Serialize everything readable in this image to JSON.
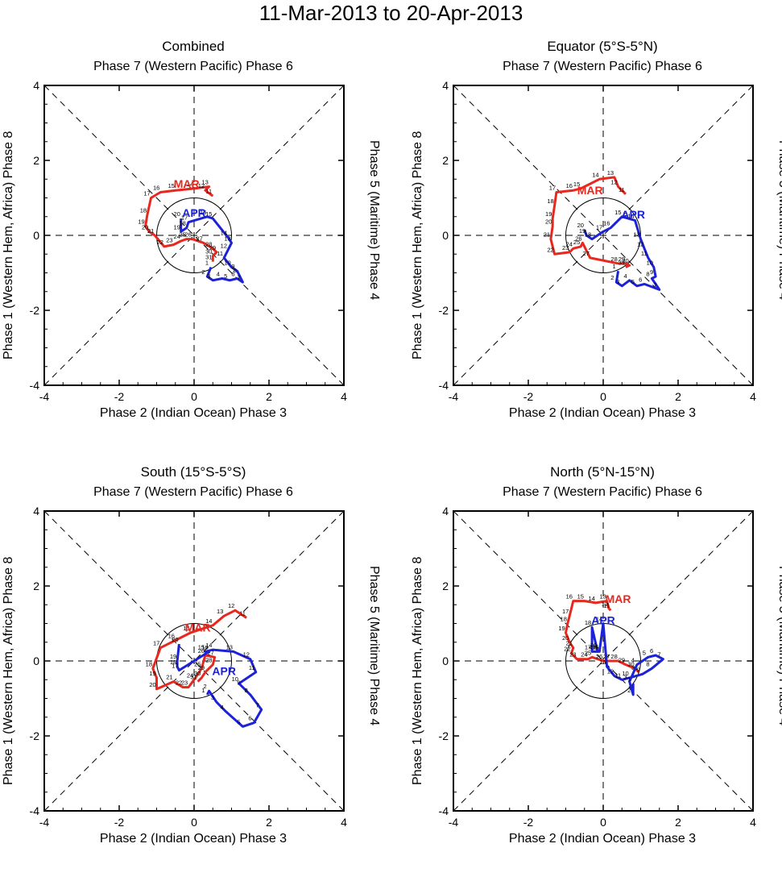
{
  "title": "11-Mar-2013 to 20-Apr-2013",
  "axis_labels": {
    "top": "Phase 7 (Western Pacific) Phase 6",
    "bottom": "Phase 2 (Indian Ocean) Phase 3",
    "left": "Phase 1 (Western Hem, Africa) Phase 8",
    "right": "Phase 5 (Maritime) Phase 4"
  },
  "colors": {
    "mar": "#e8281e",
    "apr": "#1c22d6"
  },
  "chart_data": [
    {
      "type": "line",
      "title": "Combined",
      "xlim": [
        -4,
        4
      ],
      "ylim": [
        -4,
        4
      ],
      "ticks": [
        "-4",
        "-2",
        "0",
        "2",
        "4"
      ],
      "series": [
        {
          "name": "MAR",
          "label": "MAR",
          "label_at": [
            -0.2,
            1.27
          ],
          "days": [
            11,
            12,
            13,
            14,
            15,
            16,
            17,
            18,
            19,
            20,
            21,
            22,
            23,
            24,
            25,
            26,
            27,
            28,
            29,
            30,
            31
          ],
          "x": [
            0.5,
            0.3,
            0.4,
            0.0,
            -0.5,
            -0.9,
            -1.15,
            -1.25,
            -1.3,
            -1.2,
            -1.05,
            -0.8,
            -0.55,
            -0.35,
            -0.2,
            -0.05,
            0.25,
            0.5,
            0.6,
            0.5,
            0.5
          ],
          "y": [
            1.05,
            1.2,
            1.3,
            1.25,
            1.2,
            1.15,
            1.0,
            0.55,
            0.25,
            0.1,
            0.0,
            -0.3,
            -0.25,
            -0.15,
            -0.1,
            -0.1,
            -0.2,
            -0.35,
            -0.45,
            -0.55,
            -0.7
          ]
        },
        {
          "name": "APR",
          "label": "APR",
          "label_at": [
            0.0,
            0.5
          ],
          "days": [
            1,
            2,
            3,
            4,
            5,
            6,
            7,
            8,
            9,
            10,
            11,
            12,
            13,
            14,
            15,
            16,
            17,
            18,
            19,
            20
          ],
          "x": [
            0.45,
            0.35,
            0.5,
            0.75,
            0.95,
            1.15,
            1.3,
            1.2,
            1.15,
            1.0,
            0.8,
            0.9,
            1.0,
            0.9,
            0.5,
            0.35,
            -0.15,
            -0.2,
            -0.35,
            -0.35
          ],
          "y": [
            -0.85,
            -1.1,
            -1.2,
            -1.15,
            -1.2,
            -1.15,
            -1.25,
            -1.05,
            -0.95,
            -0.85,
            -0.6,
            -0.4,
            -0.2,
            -0.05,
            0.45,
            0.5,
            0.35,
            0.2,
            0.1,
            0.45
          ]
        }
      ]
    },
    {
      "type": "line",
      "title": "Equator (5°S-5°N)",
      "xlim": [
        -4,
        4
      ],
      "ylim": [
        -4,
        4
      ],
      "ticks": [
        "-4",
        "-2",
        "0",
        "2",
        "4"
      ],
      "series": [
        {
          "name": "MAR",
          "label": "MAR",
          "label_at": [
            -0.35,
            1.1
          ],
          "days": [
            11,
            12,
            13,
            14,
            15,
            16,
            17,
            18,
            19,
            20,
            21,
            22,
            23,
            24,
            25,
            26,
            27,
            28,
            29,
            30,
            31
          ],
          "x": [
            0.6,
            0.4,
            0.3,
            -0.1,
            -0.6,
            -0.8,
            -1.25,
            -1.3,
            -1.35,
            -1.35,
            -1.4,
            -1.3,
            -0.9,
            -0.8,
            -0.6,
            -0.55,
            -0.35,
            0.4,
            0.6,
            0.7,
            0.6
          ],
          "y": [
            1.1,
            1.3,
            1.55,
            1.5,
            1.25,
            1.2,
            1.15,
            0.8,
            0.45,
            0.25,
            -0.1,
            -0.5,
            -0.45,
            -0.35,
            -0.3,
            -0.2,
            -0.6,
            -0.75,
            -0.75,
            -0.8,
            -0.85
          ]
        },
        {
          "name": "APR",
          "label": "APR",
          "label_at": [
            0.8,
            0.45
          ],
          "days": [
            1,
            2,
            3,
            4,
            5,
            6,
            7,
            8,
            9,
            10,
            11,
            12,
            13,
            14,
            15,
            16,
            17,
            18,
            19,
            20
          ],
          "x": [
            0.4,
            0.35,
            0.5,
            0.7,
            0.9,
            1.1,
            1.5,
            1.3,
            1.4,
            1.35,
            1.2,
            1.1,
            1.0,
            0.85,
            0.5,
            0.2,
            0.0,
            -0.3,
            -0.45,
            -0.5
          ],
          "y": [
            -0.95,
            -1.25,
            -1.35,
            -1.2,
            -1.35,
            -1.3,
            -1.45,
            -1.15,
            -1.1,
            -0.85,
            -0.6,
            -0.35,
            -0.1,
            0.4,
            0.5,
            0.2,
            0.1,
            -0.1,
            0.0,
            0.15
          ]
        }
      ]
    },
    {
      "type": "line",
      "title": "South (15°S-5°S)",
      "xlim": [
        -4,
        4
      ],
      "ylim": [
        -4,
        4
      ],
      "ticks": [
        "-4",
        "-2",
        "0",
        "2",
        "4"
      ],
      "series": [
        {
          "name": "MAR",
          "label": "MAR",
          "label_at": [
            0.1,
            0.78
          ],
          "days": [
            11,
            12,
            13,
            14,
            15,
            16,
            17,
            18,
            19,
            20,
            21,
            22,
            23,
            24,
            25,
            26,
            27,
            28,
            29,
            30,
            31
          ],
          "x": [
            1.4,
            1.1,
            0.8,
            0.5,
            -0.1,
            -0.5,
            -0.9,
            -1.1,
            -1.0,
            -1.0,
            -0.55,
            -0.3,
            -0.15,
            0.0,
            0.2,
            0.3,
            0.55,
            0.5,
            0.3,
            0.2,
            0.1
          ],
          "y": [
            1.15,
            1.35,
            1.2,
            0.95,
            0.75,
            0.55,
            0.35,
            -0.2,
            -0.45,
            -0.75,
            -0.55,
            -0.7,
            -0.7,
            -0.5,
            -0.2,
            0.15,
            0.1,
            -0.1,
            -0.3,
            -0.45,
            -0.55
          ]
        },
        {
          "name": "APR",
          "label": "APR",
          "label_at": [
            0.8,
            -0.38
          ],
          "days": [
            1,
            2,
            3,
            4,
            5,
            6,
            7,
            8,
            9,
            10,
            11,
            12,
            13,
            14,
            15,
            16,
            17,
            18,
            19,
            20
          ],
          "x": [
            0.35,
            0.4,
            0.6,
            0.85,
            1.3,
            1.6,
            1.8,
            1.5,
            1.3,
            1.2,
            1.65,
            1.5,
            1.05,
            0.5,
            0.3,
            0.4,
            -0.4,
            -0.45,
            -0.45,
            -0.4
          ],
          "y": [
            -0.9,
            -0.8,
            -1.1,
            -1.35,
            -1.75,
            -1.65,
            -1.3,
            -0.9,
            -0.7,
            -0.6,
            -0.3,
            0.05,
            0.25,
            0.3,
            0.25,
            0.25,
            -0.25,
            -0.15,
            0.0,
            0.45
          ]
        }
      ]
    },
    {
      "type": "line",
      "title": "North (5°N-15°N)",
      "xlim": [
        -4,
        4
      ],
      "ylim": [
        -4,
        4
      ],
      "ticks": [
        "-4",
        "-2",
        "0",
        "2",
        "4"
      ],
      "series": [
        {
          "name": "MAR",
          "label": "MAR",
          "label_at": [
            0.4,
            1.55
          ],
          "days": [
            11,
            12,
            13,
            14,
            15,
            16,
            17,
            18,
            19,
            20,
            21,
            22,
            23,
            24,
            25,
            26,
            27,
            28,
            29,
            30,
            31
          ],
          "x": [
            0.2,
            0.15,
            0.1,
            -0.2,
            -0.5,
            -0.8,
            -0.9,
            -0.95,
            -1.0,
            -0.9,
            -0.8,
            -0.85,
            -0.7,
            -0.4,
            -0.3,
            0.0,
            0.2,
            0.4,
            0.6,
            0.85,
            0.95
          ],
          "y": [
            1.35,
            1.4,
            1.6,
            1.55,
            1.6,
            1.6,
            1.2,
            1.0,
            0.75,
            0.5,
            0.35,
            0.2,
            0.05,
            0.05,
            0.1,
            0.0,
            0.0,
            0.0,
            -0.1,
            -0.2,
            -0.3
          ]
        },
        {
          "name": "APR",
          "label": "APR",
          "label_at": [
            0.0,
            0.98
          ],
          "days": [
            1,
            2,
            3,
            4,
            5,
            6,
            7,
            8,
            9,
            10,
            11,
            12,
            13,
            14,
            15,
            16,
            17,
            18,
            19,
            20
          ],
          "x": [
            0.8,
            0.8,
            0.7,
            0.9,
            1.2,
            1.4,
            1.6,
            1.3,
            1.05,
            0.7,
            0.5,
            0.3,
            0.1,
            0.0,
            -0.1,
            -0.15,
            -0.3,
            -0.3,
            -0.15,
            -0.15
          ],
          "y": [
            -0.6,
            -0.9,
            -0.55,
            -0.1,
            0.1,
            0.15,
            0.05,
            -0.2,
            -0.35,
            -0.45,
            -0.5,
            -0.4,
            -0.15,
            1.0,
            0.25,
            0.25,
            0.25,
            0.9,
            0.25,
            0.3
          ]
        }
      ]
    }
  ]
}
